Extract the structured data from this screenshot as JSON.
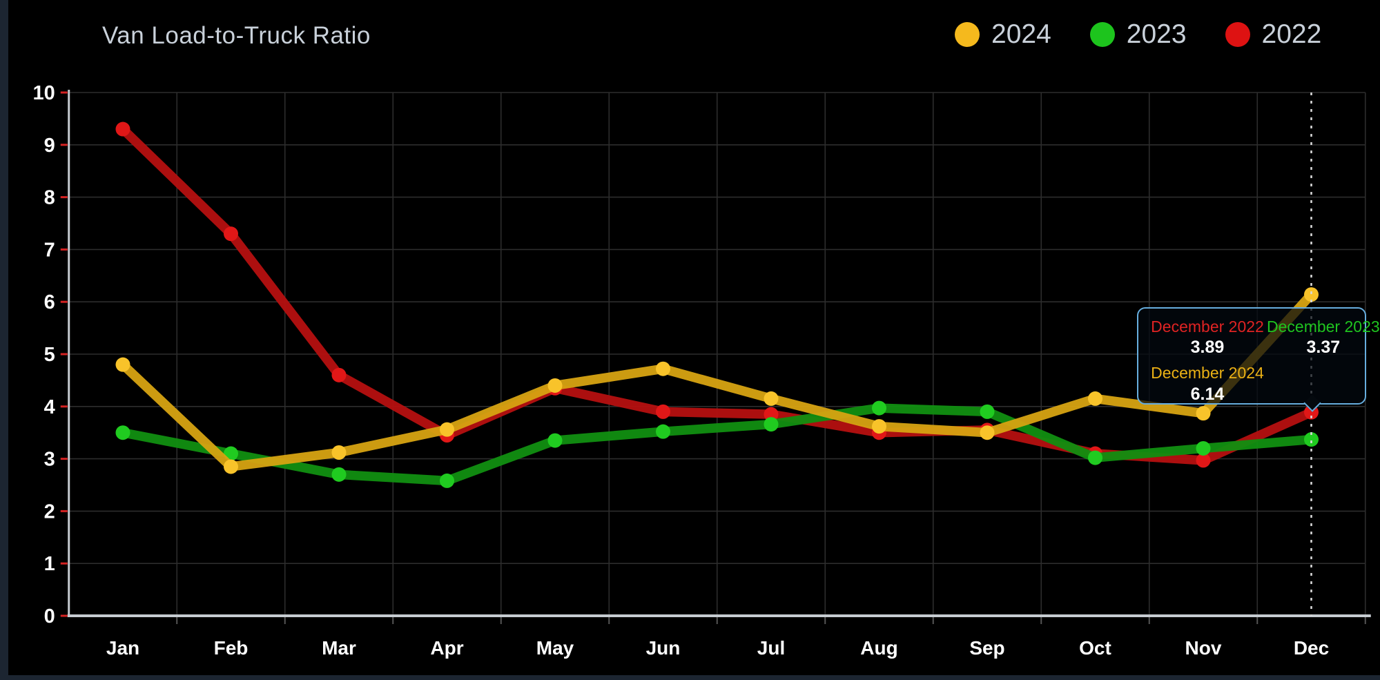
{
  "page": {
    "background_color": "#1c2531",
    "panel_color": "#000000"
  },
  "chart_data": {
    "type": "line",
    "title": "Van Load-to-Truck Ratio",
    "categories": [
      "Jan",
      "Feb",
      "Mar",
      "Apr",
      "May",
      "Jun",
      "Jul",
      "Aug",
      "Sep",
      "Oct",
      "Nov",
      "Dec"
    ],
    "xlabel": "",
    "ylabel": "",
    "ylim": [
      0,
      10
    ],
    "yticks": [
      0,
      1,
      2,
      3,
      4,
      5,
      6,
      7,
      8,
      9,
      10
    ],
    "grid": "on",
    "legend_position": "top-right",
    "series": [
      {
        "name": "2024",
        "line_color": "#d7a312",
        "dot_color": "#f8c32a",
        "legend_color": "#f5b91d",
        "values": [
          4.8,
          2.85,
          3.12,
          3.56,
          4.4,
          4.72,
          4.15,
          3.62,
          3.5,
          4.15,
          3.87,
          6.14
        ]
      },
      {
        "name": "2023",
        "line_color": "#118f11",
        "dot_color": "#20cb20",
        "legend_color": "#1dc41d",
        "values": [
          3.5,
          3.1,
          2.7,
          2.58,
          3.35,
          3.52,
          3.66,
          3.97,
          3.9,
          3.02,
          3.2,
          3.37
        ]
      },
      {
        "name": "2022",
        "line_color": "#b51010",
        "dot_color": "#e11717",
        "legend_color": "#de1212",
        "values": [
          9.3,
          7.3,
          4.6,
          3.45,
          4.35,
          3.9,
          3.85,
          3.5,
          3.55,
          3.1,
          2.97,
          3.89
        ]
      }
    ],
    "cursor": {
      "month": "Dec",
      "style": "dotted-vertical-line"
    }
  },
  "tooltip": {
    "entries": [
      {
        "label": "December 2022",
        "value": "3.89",
        "color": "#e02323"
      },
      {
        "label": "December 2023",
        "value": "3.37",
        "color": "#1fc41f"
      },
      {
        "label": "December 2024",
        "value": "6.14",
        "color": "#eab015"
      }
    ]
  },
  "style": {
    "grid_color": "#2d2d2d",
    "axis_color": "#c6cbd1",
    "y_tick_color": "#d42222",
    "x_tick_color": "#555555",
    "label_color": "#ffffff",
    "title_color": "#c9d1da",
    "cursor_color": "#d8d8d8",
    "tooltip_border": "#67aede"
  }
}
